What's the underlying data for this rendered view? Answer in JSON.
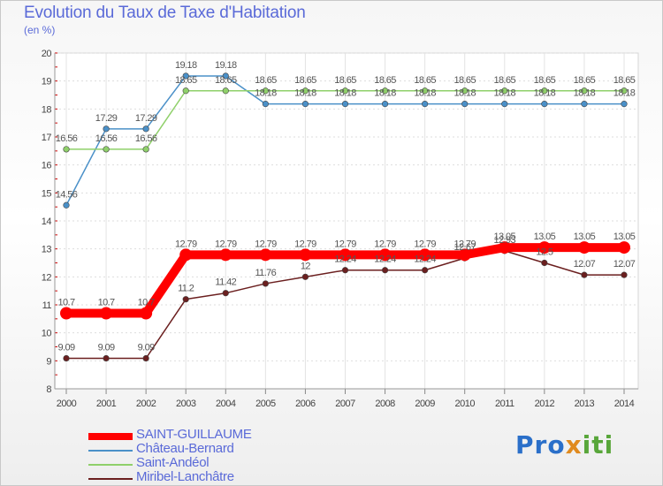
{
  "title": "Evolution du Taux de Taxe d'Habitation",
  "unit": "(en %)",
  "logo": {
    "p1": "Pro",
    "p2": "x",
    "p3": "iti"
  },
  "chart_data": {
    "type": "line",
    "title": "Evolution du Taux de Taxe d'Habitation",
    "ylabel": "(en %)",
    "xlabel": "",
    "ylim": [
      8,
      20
    ],
    "yticks": [
      8,
      9,
      10,
      11,
      12,
      13,
      14,
      15,
      16,
      17,
      18,
      19,
      20
    ],
    "categories": [
      "2000",
      "2001",
      "2002",
      "2003",
      "2004",
      "2005",
      "2006",
      "2007",
      "2008",
      "2009",
      "2010",
      "2011",
      "2012",
      "2013",
      "2014"
    ],
    "series": [
      {
        "name": "SAINT-GUILLAUME",
        "color": "#ff0000",
        "values": [
          10.7,
          10.7,
          10.7,
          12.79,
          12.79,
          12.79,
          12.79,
          12.79,
          12.79,
          12.79,
          12.79,
          13.05,
          13.05,
          13.05,
          13.05
        ]
      },
      {
        "name": "Château-Bernard",
        "color": "#4a90c8",
        "values": [
          14.56,
          17.29,
          17.29,
          19.18,
          19.18,
          18.18,
          18.18,
          18.18,
          18.18,
          18.18,
          18.18,
          18.18,
          18.18,
          18.18,
          18.18
        ]
      },
      {
        "name": "Saint-Andéol",
        "color": "#8fd06a",
        "values": [
          16.56,
          16.56,
          16.56,
          18.65,
          18.65,
          18.65,
          18.65,
          18.65,
          18.65,
          18.65,
          18.65,
          18.65,
          18.65,
          18.65,
          18.65
        ]
      },
      {
        "name": "Miribel-Lanchâtre",
        "color": "#6b1f1f",
        "values": [
          9.09,
          9.09,
          9.09,
          11.2,
          11.42,
          11.76,
          12,
          12.24,
          12.24,
          12.24,
          12.67,
          12.93,
          12.5,
          12.07,
          12.07
        ]
      }
    ]
  }
}
